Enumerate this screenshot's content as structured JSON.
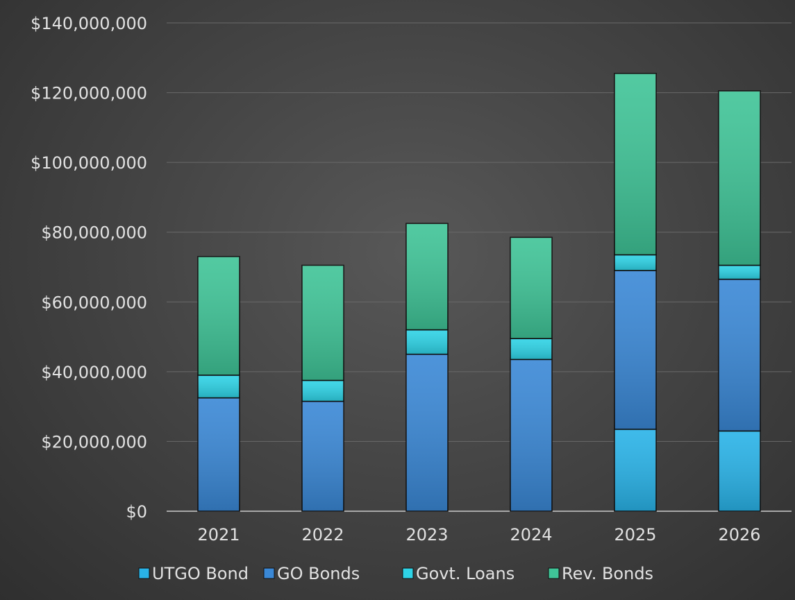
{
  "chart_data": {
    "type": "bar",
    "stacked": true,
    "categories": [
      "2021",
      "2022",
      "2023",
      "2024",
      "2025",
      "2026"
    ],
    "series": [
      {
        "name": "UTGO Bond",
        "color": "#29b3e8",
        "values": [
          0,
          0,
          0,
          0,
          23500000,
          23000000
        ]
      },
      {
        "name": "GO Bonds",
        "color": "#3a88d6",
        "values": [
          32500000,
          31500000,
          45000000,
          43500000,
          45500000,
          43500000
        ]
      },
      {
        "name": "Govt. Loans",
        "color": "#2ed3e6",
        "values": [
          6500000,
          6000000,
          7000000,
          6000000,
          4500000,
          4000000
        ]
      },
      {
        "name": "Rev. Bonds",
        "color": "#3fc497",
        "values": [
          34000000,
          33000000,
          30500000,
          29000000,
          52000000,
          50000000
        ]
      }
    ],
    "ylim": [
      0,
      140000000
    ],
    "yticks": [
      0,
      20000000,
      40000000,
      60000000,
      80000000,
      100000000,
      120000000,
      140000000
    ],
    "ytick_labels": [
      "$0",
      "$20,000,000",
      "$40,000,000",
      "$60,000,000",
      "$80,000,000",
      "$100,000,000",
      "$120,000,000",
      "$140,000,000"
    ],
    "grid": true,
    "legend_position": "bottom"
  }
}
